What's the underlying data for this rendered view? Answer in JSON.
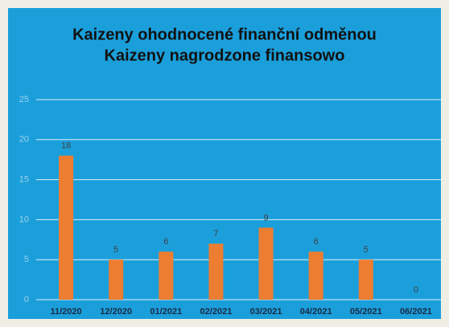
{
  "chart_data": {
    "type": "bar",
    "title": [
      "Kaizeny ohodnocené finanční odměnou",
      "Kaizeny nagrodzone finansowo"
    ],
    "categories": [
      "11/2020",
      "12/2020",
      "01/2021",
      "02/2021",
      "03/2021",
      "04/2021",
      "05/2021",
      "06/2021"
    ],
    "values": [
      18,
      5,
      6,
      7,
      9,
      6,
      5,
      0
    ],
    "color": "#ed7d31",
    "ylim": [
      0,
      25
    ],
    "yticks": [
      0,
      5,
      10,
      15,
      20,
      25
    ],
    "grid": true,
    "data_labels": true
  }
}
